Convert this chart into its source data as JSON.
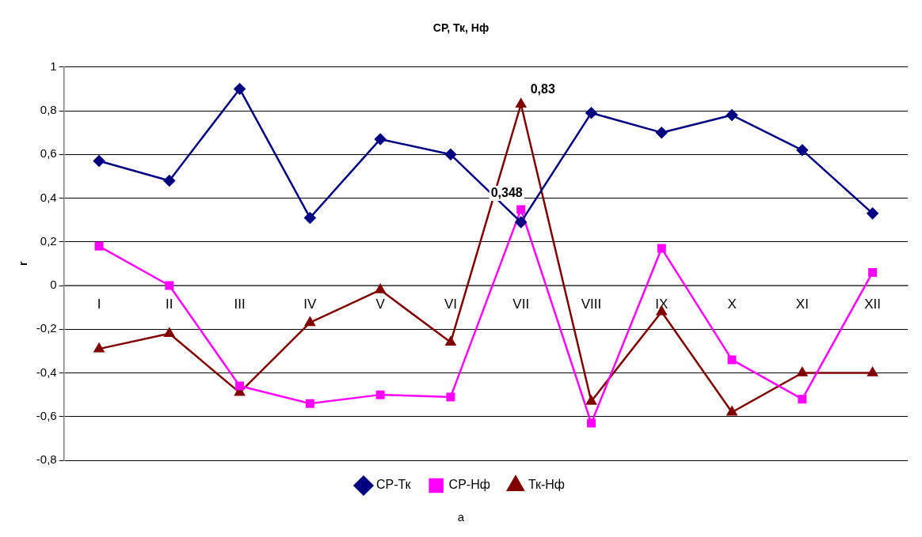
{
  "chart_data": {
    "type": "line",
    "title": "СР, Тк, Нф",
    "ylabel": "r",
    "categories": [
      "I",
      "II",
      "III",
      "IV",
      "V",
      "VI",
      "VII",
      "VIII",
      "IX",
      "X",
      "XI",
      "XII"
    ],
    "series": [
      {
        "name": "СР-Тк",
        "color": "#000080",
        "marker": "diamond",
        "values": [
          0.57,
          0.48,
          0.9,
          0.31,
          0.67,
          0.6,
          0.29,
          0.79,
          0.7,
          0.78,
          0.62,
          0.33
        ]
      },
      {
        "name": "СР-Нф",
        "color": "#ff00ff",
        "marker": "square",
        "values": [
          0.18,
          0.0,
          -0.46,
          -0.54,
          -0.5,
          -0.51,
          0.348,
          -0.63,
          0.17,
          -0.34,
          -0.52,
          0.06
        ],
        "value_labels": [
          null,
          null,
          null,
          null,
          null,
          null,
          "0,348",
          null,
          null,
          null,
          null,
          null
        ]
      },
      {
        "name": "Тк-Нф",
        "color": "#800000",
        "marker": "triangle",
        "values": [
          -0.29,
          -0.22,
          -0.49,
          -0.17,
          -0.02,
          -0.26,
          0.83,
          -0.53,
          -0.12,
          -0.58,
          -0.4,
          -0.4
        ],
        "value_labels": [
          null,
          null,
          null,
          null,
          null,
          null,
          "0,83",
          null,
          null,
          null,
          null,
          null
        ]
      }
    ],
    "ylim": [
      -0.8,
      1
    ],
    "yticks": [
      {
        "value": -0.8,
        "label": "-0,8"
      },
      {
        "value": -0.6,
        "label": "-0,6"
      },
      {
        "value": -0.4,
        "label": "-0,4"
      },
      {
        "value": -0.2,
        "label": "-0,2"
      },
      {
        "value": 0,
        "label": "0"
      },
      {
        "value": 0.2,
        "label": "0,2"
      },
      {
        "value": 0.4,
        "label": "0,4"
      },
      {
        "value": 0.6,
        "label": "0,6"
      },
      {
        "value": 0.8,
        "label": "0,8"
      },
      {
        "value": 1,
        "label": "1"
      }
    ],
    "grid": "y",
    "legend": "bottom",
    "line_style": "solid",
    "annotations": [
      "а"
    ]
  }
}
